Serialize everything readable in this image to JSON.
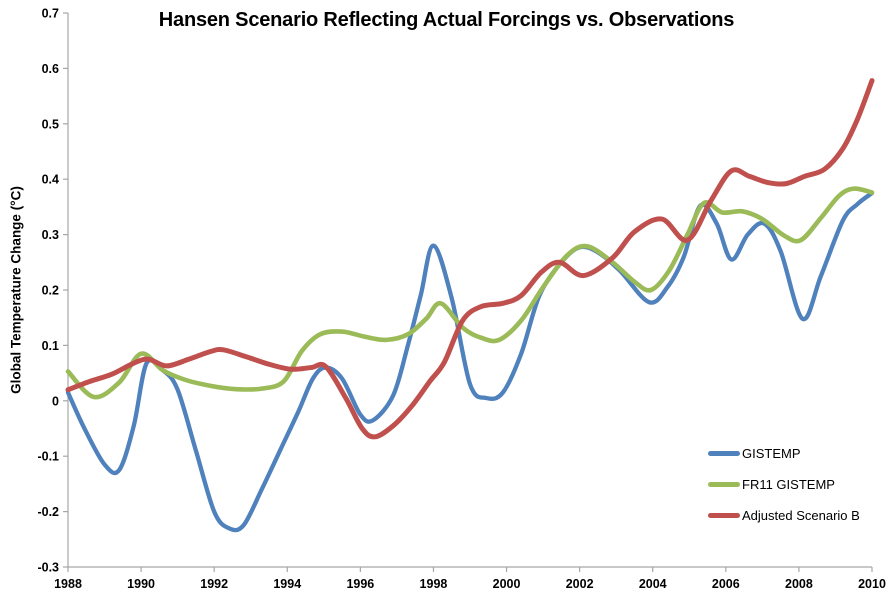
{
  "chart_data": {
    "type": "line",
    "title": "Hansen Scenario Reflecting Actual Forcings vs. Observations",
    "xlabel": "",
    "ylabel": "Global Temperature Change (°C)",
    "xlim": [
      1988,
      2010
    ],
    "ylim": [
      -0.3,
      0.7
    ],
    "x_ticks": [
      "1988",
      "1990",
      "1992",
      "1994",
      "1996",
      "1998",
      "2000",
      "2002",
      "2004",
      "2006",
      "2008",
      "2010"
    ],
    "y_ticks": [
      "0.7",
      "0.6",
      "0.5",
      "0.4",
      "0.3",
      "0.2",
      "0.1",
      "0",
      "-0.1",
      "-0.2",
      "-0.3"
    ],
    "grid": "off",
    "legend_position": "inside-lower-right",
    "background_color": "#FFFFFF",
    "axis_color": "#A6A6A6",
    "series": [
      {
        "name": "GISTEMP",
        "color": "#4F81BD",
        "stroke_width": 4.3,
        "points": [
          [
            1988.0,
            0.015
          ],
          [
            1988.45,
            -0.05
          ],
          [
            1989.0,
            -0.115
          ],
          [
            1989.4,
            -0.125
          ],
          [
            1989.8,
            -0.045
          ],
          [
            1990.15,
            0.068
          ],
          [
            1990.6,
            0.055
          ],
          [
            1991.0,
            0.02
          ],
          [
            1991.5,
            -0.09
          ],
          [
            1992.0,
            -0.2
          ],
          [
            1992.4,
            -0.23
          ],
          [
            1992.8,
            -0.225
          ],
          [
            1993.3,
            -0.16
          ],
          [
            1993.8,
            -0.09
          ],
          [
            1994.3,
            -0.02
          ],
          [
            1994.7,
            0.04
          ],
          [
            1995.05,
            0.06
          ],
          [
            1995.5,
            0.04
          ],
          [
            1996.0,
            -0.025
          ],
          [
            1996.35,
            -0.035
          ],
          [
            1996.9,
            0.01
          ],
          [
            1997.3,
            0.1
          ],
          [
            1997.65,
            0.19
          ],
          [
            1998.0,
            0.28
          ],
          [
            1998.5,
            0.185
          ],
          [
            1999.0,
            0.03
          ],
          [
            1999.45,
            0.005
          ],
          [
            1999.9,
            0.015
          ],
          [
            2000.4,
            0.085
          ],
          [
            2000.9,
            0.19
          ],
          [
            2001.5,
            0.25
          ],
          [
            2002.0,
            0.277
          ],
          [
            2002.5,
            0.268
          ],
          [
            2003.1,
            0.235
          ],
          [
            2003.9,
            0.178
          ],
          [
            2004.4,
            0.205
          ],
          [
            2004.85,
            0.26
          ],
          [
            2005.3,
            0.352
          ],
          [
            2005.75,
            0.32
          ],
          [
            2006.15,
            0.255
          ],
          [
            2006.6,
            0.3
          ],
          [
            2007.05,
            0.32
          ],
          [
            2007.5,
            0.27
          ],
          [
            2008.1,
            0.148
          ],
          [
            2008.6,
            0.225
          ],
          [
            2009.2,
            0.325
          ],
          [
            2009.6,
            0.355
          ],
          [
            2010.0,
            0.375
          ]
        ]
      },
      {
        "name": "FR11 GISTEMP",
        "color": "#9BBB59",
        "stroke_width": 4.6,
        "points": [
          [
            1988.0,
            0.053
          ],
          [
            1988.7,
            0.007
          ],
          [
            1989.4,
            0.033
          ],
          [
            1990.0,
            0.085
          ],
          [
            1990.6,
            0.055
          ],
          [
            1991.2,
            0.038
          ],
          [
            1991.9,
            0.027
          ],
          [
            1992.6,
            0.021
          ],
          [
            1993.3,
            0.022
          ],
          [
            1993.9,
            0.035
          ],
          [
            1994.4,
            0.09
          ],
          [
            1994.9,
            0.12
          ],
          [
            1995.5,
            0.125
          ],
          [
            1996.1,
            0.116
          ],
          [
            1996.7,
            0.11
          ],
          [
            1997.3,
            0.12
          ],
          [
            1997.8,
            0.148
          ],
          [
            1998.2,
            0.176
          ],
          [
            1998.8,
            0.132
          ],
          [
            1999.3,
            0.114
          ],
          [
            1999.8,
            0.11
          ],
          [
            2000.4,
            0.145
          ],
          [
            2001.0,
            0.205
          ],
          [
            2001.65,
            0.262
          ],
          [
            2002.2,
            0.279
          ],
          [
            2002.9,
            0.25
          ],
          [
            2003.5,
            0.215
          ],
          [
            2003.95,
            0.2
          ],
          [
            2004.45,
            0.235
          ],
          [
            2004.95,
            0.3
          ],
          [
            2005.4,
            0.357
          ],
          [
            2005.9,
            0.34
          ],
          [
            2006.45,
            0.342
          ],
          [
            2007.0,
            0.328
          ],
          [
            2007.6,
            0.298
          ],
          [
            2008.05,
            0.29
          ],
          [
            2008.6,
            0.33
          ],
          [
            2009.1,
            0.37
          ],
          [
            2009.5,
            0.383
          ],
          [
            2010.0,
            0.376
          ]
        ]
      },
      {
        "name": "Adjusted Scenario B",
        "color": "#C0504D",
        "stroke_width": 5,
        "points": [
          [
            1988.0,
            0.02
          ],
          [
            1988.6,
            0.035
          ],
          [
            1989.2,
            0.048
          ],
          [
            1989.8,
            0.068
          ],
          [
            1990.2,
            0.075
          ],
          [
            1990.7,
            0.063
          ],
          [
            1991.3,
            0.075
          ],
          [
            1991.9,
            0.089
          ],
          [
            1992.25,
            0.092
          ],
          [
            1992.9,
            0.079
          ],
          [
            1993.5,
            0.066
          ],
          [
            1994.1,
            0.057
          ],
          [
            1994.65,
            0.06
          ],
          [
            1995.05,
            0.062
          ],
          [
            1995.6,
            0.005
          ],
          [
            1996.05,
            -0.05
          ],
          [
            1996.4,
            -0.065
          ],
          [
            1996.9,
            -0.045
          ],
          [
            1997.4,
            -0.01
          ],
          [
            1997.9,
            0.035
          ],
          [
            1998.3,
            0.07
          ],
          [
            1998.8,
            0.145
          ],
          [
            1999.3,
            0.17
          ],
          [
            1999.9,
            0.176
          ],
          [
            2000.4,
            0.19
          ],
          [
            2000.95,
            0.232
          ],
          [
            2001.45,
            0.25
          ],
          [
            2002.1,
            0.226
          ],
          [
            2002.9,
            0.258
          ],
          [
            2003.5,
            0.305
          ],
          [
            2004.25,
            0.328
          ],
          [
            2004.95,
            0.29
          ],
          [
            2005.6,
            0.362
          ],
          [
            2006.15,
            0.415
          ],
          [
            2006.65,
            0.405
          ],
          [
            2007.15,
            0.394
          ],
          [
            2007.65,
            0.392
          ],
          [
            2008.15,
            0.405
          ],
          [
            2008.7,
            0.418
          ],
          [
            2009.2,
            0.455
          ],
          [
            2009.6,
            0.508
          ],
          [
            2010.0,
            0.578
          ]
        ]
      }
    ]
  }
}
